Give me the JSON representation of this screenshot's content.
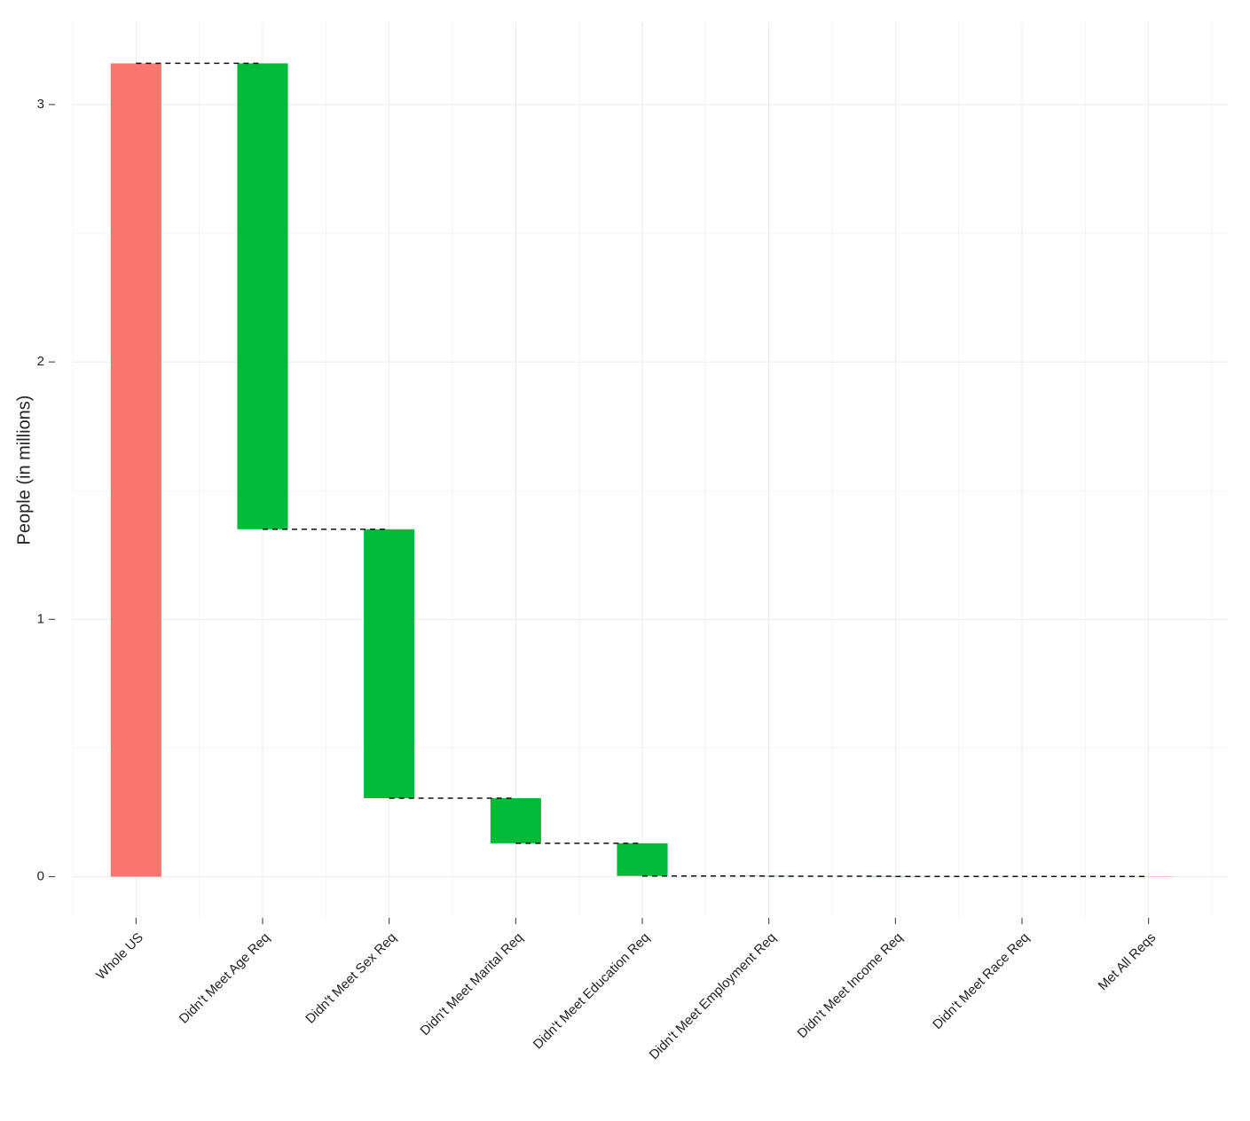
{
  "chart_data": {
    "type": "waterfall",
    "y_label": "People (in millions)",
    "categories": [
      "Whole US",
      "Didn't Meet Age Req",
      "Didn't Meet Sex Req",
      "Didn't Meet Marital Req",
      "Didn't Meet Education Req",
      "Didn't Meet Employment Req",
      "Didn't Meet Income Req",
      "Didn't Meet Race Req",
      "Met All Reqs"
    ],
    "measure": [
      "absolute",
      "relative",
      "relative",
      "relative",
      "relative",
      "relative",
      "relative",
      "relative",
      "absolute"
    ],
    "values": [
      3.16,
      -1.81,
      -1.045,
      -0.175,
      -0.127,
      -0.001,
      -0.001,
      0,
      0.001
    ],
    "colors": [
      "#f8766d",
      "#00ba38",
      "#00ba38",
      "#00ba38",
      "#00ba38",
      "#00ba38",
      "#00ba38",
      "#00ba38",
      "#f8766d"
    ],
    "ylim": [
      -0.16,
      3.32
    ],
    "yticks": [
      0,
      1,
      2,
      3
    ],
    "grid": true
  }
}
